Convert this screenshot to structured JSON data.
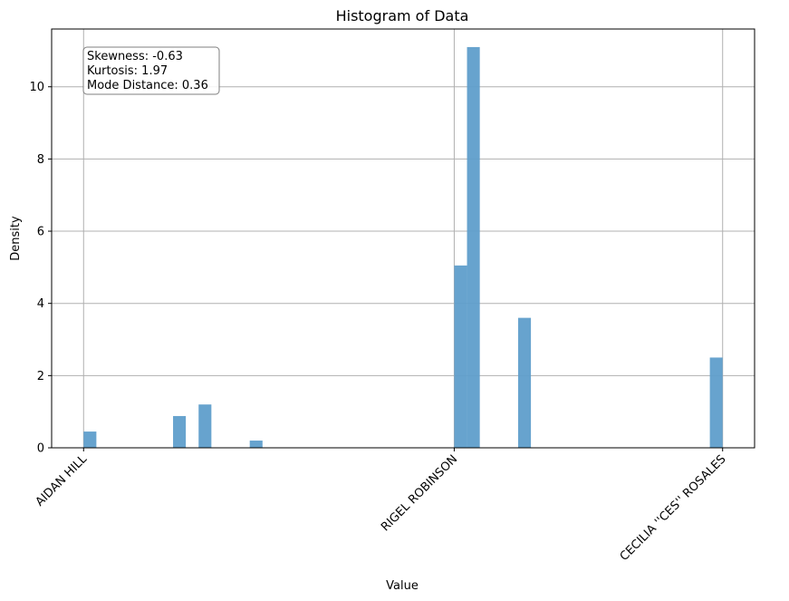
{
  "chart_data": {
    "type": "bar",
    "title": "Histogram of Data",
    "xlabel": "Value",
    "ylabel": "Density",
    "ylim": [
      0,
      11.6
    ],
    "yticks": [
      0,
      2,
      4,
      6,
      8,
      10
    ],
    "xlim": [
      -0.05,
      1.05
    ],
    "xticks": [
      {
        "value": 0,
        "label": "AIDAN HILL"
      },
      {
        "value": 0.58,
        "label": "RIGEL ROBINSON"
      },
      {
        "value": 1,
        "label": "CECILIA ''CES'' ROSALES"
      }
    ],
    "bin_edges": [
      0,
      0.02,
      0.04,
      0.06,
      0.08,
      0.1,
      0.12,
      0.14,
      0.16,
      0.18,
      0.2,
      0.22,
      0.24,
      0.26,
      0.28,
      0.3,
      0.32,
      0.34,
      0.36,
      0.38,
      0.4,
      0.42,
      0.44,
      0.46,
      0.48,
      0.5,
      0.52,
      0.54,
      0.56,
      0.58,
      0.6,
      0.62,
      0.64,
      0.66,
      0.68,
      0.7,
      0.72,
      0.74,
      0.76,
      0.78,
      0.8,
      0.82,
      0.84,
      0.86,
      0.88,
      0.9,
      0.92,
      0.94,
      0.96,
      0.98,
      1.0
    ],
    "values": [
      0.45,
      0,
      0,
      0,
      0,
      0,
      0,
      0.88,
      0,
      1.2,
      0,
      0,
      0,
      0.2,
      0,
      0,
      0,
      0,
      0,
      0,
      0,
      0,
      0,
      0,
      0,
      0,
      0,
      0,
      0,
      5.05,
      11.1,
      0,
      0,
      0,
      3.6,
      0,
      0,
      0,
      0,
      0,
      0,
      0,
      0,
      0,
      0,
      0,
      0,
      0,
      0,
      2.5
    ],
    "grid": true,
    "bar_color": "#5f9ecb",
    "annotation": {
      "lines": [
        "Skewness: -0.63",
        "Kurtosis: 1.97",
        "Mode Distance: 0.36"
      ],
      "position": "top-left"
    }
  }
}
